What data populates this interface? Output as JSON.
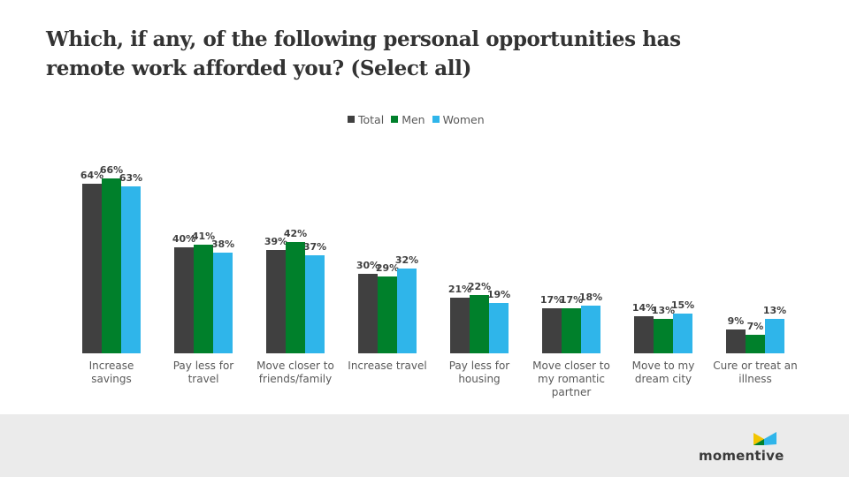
{
  "title_lines": [
    "Which, if any, of the following personal opportunities has",
    "remote work afforded you? (Select all)"
  ],
  "brand": {
    "name": "momentive"
  },
  "colors": {
    "Total": "#404040",
    "Men": "#00802b",
    "Women": "#2fb5ea"
  },
  "chart_data": {
    "type": "bar",
    "title": "Which, if any, of the following personal opportunities has remote work afforded you? (Select all)",
    "categories": [
      [
        "Increase",
        "savings"
      ],
      [
        "Pay less for",
        "travel"
      ],
      [
        "Move closer to",
        "friends/family"
      ],
      [
        "Increase travel"
      ],
      [
        "Pay less for",
        "housing"
      ],
      [
        "Move closer to",
        "my romantic",
        "partner"
      ],
      [
        "Move to my",
        "dream city"
      ],
      [
        "Cure or treat an",
        "illness"
      ]
    ],
    "series": [
      {
        "name": "Total",
        "values": [
          64,
          40,
          39,
          30,
          21,
          17,
          14,
          9
        ]
      },
      {
        "name": "Men",
        "values": [
          66,
          41,
          42,
          29,
          22,
          17,
          13,
          7
        ]
      },
      {
        "name": "Women",
        "values": [
          63,
          38,
          37,
          32,
          19,
          18,
          15,
          13
        ]
      }
    ],
    "value_suffix": "%",
    "ylim": [
      0,
      70
    ],
    "grid": false,
    "legend_position": "top-center",
    "xlabel": "",
    "ylabel": ""
  }
}
